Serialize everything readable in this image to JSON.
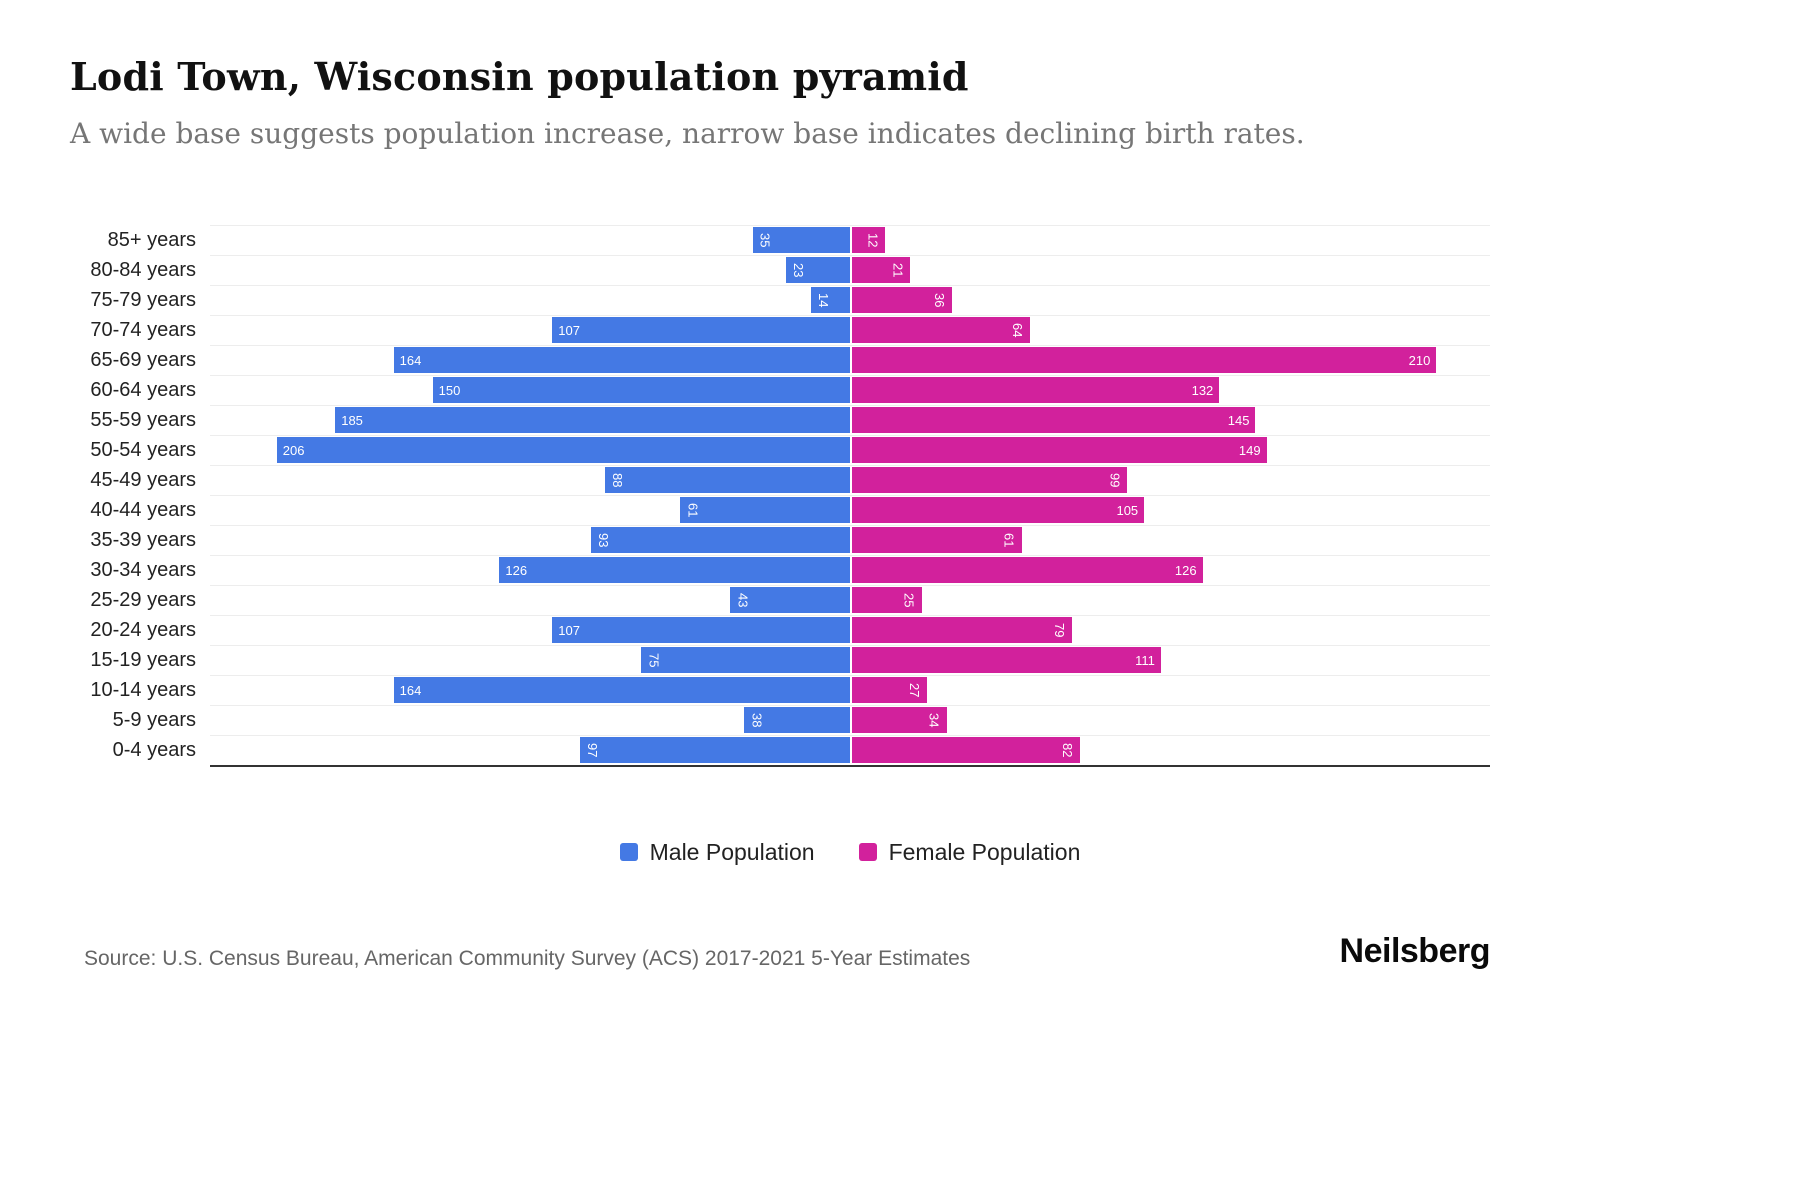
{
  "title": "Lodi Town, Wisconsin population pyramid",
  "subtitle": "A wide base suggests population increase, narrow base indicates declining birth rates.",
  "legend": {
    "male": "Male Population",
    "female": "Female Population"
  },
  "source": "Source: U.S. Census Bureau, American Community Survey (ACS) 2017-2021 5-Year Estimates",
  "logo": "Neilsberg",
  "colors": {
    "male": "#4479E4",
    "female": "#D2219C",
    "axis": "#333333",
    "grid": "#ededed"
  },
  "chart_data": {
    "type": "bar",
    "variant": "population-pyramid",
    "orientation": "horizontal",
    "title": "Lodi Town, Wisconsin population pyramid",
    "categories": [
      "85+ years",
      "80-84 years",
      "75-79 years",
      "70-74 years",
      "65-69 years",
      "60-64 years",
      "55-59 years",
      "50-54 years",
      "45-49 years",
      "40-44 years",
      "35-39 years",
      "30-34 years",
      "25-29 years",
      "20-24 years",
      "15-19 years",
      "10-14 years",
      "5-9 years",
      "0-4 years"
    ],
    "series": [
      {
        "name": "Male Population",
        "side": "left",
        "color": "#4479E4",
        "values": [
          35,
          23,
          14,
          107,
          164,
          150,
          185,
          206,
          88,
          61,
          93,
          126,
          43,
          107,
          75,
          164,
          38,
          97
        ]
      },
      {
        "name": "Female Population",
        "side": "right",
        "color": "#D2219C",
        "values": [
          12,
          21,
          36,
          64,
          210,
          132,
          145,
          149,
          99,
          105,
          61,
          126,
          25,
          79,
          111,
          27,
          34,
          82
        ]
      }
    ],
    "axis_max_per_side": 230,
    "value_labels": "inside-end",
    "grid": true,
    "legend_position": "bottom"
  }
}
